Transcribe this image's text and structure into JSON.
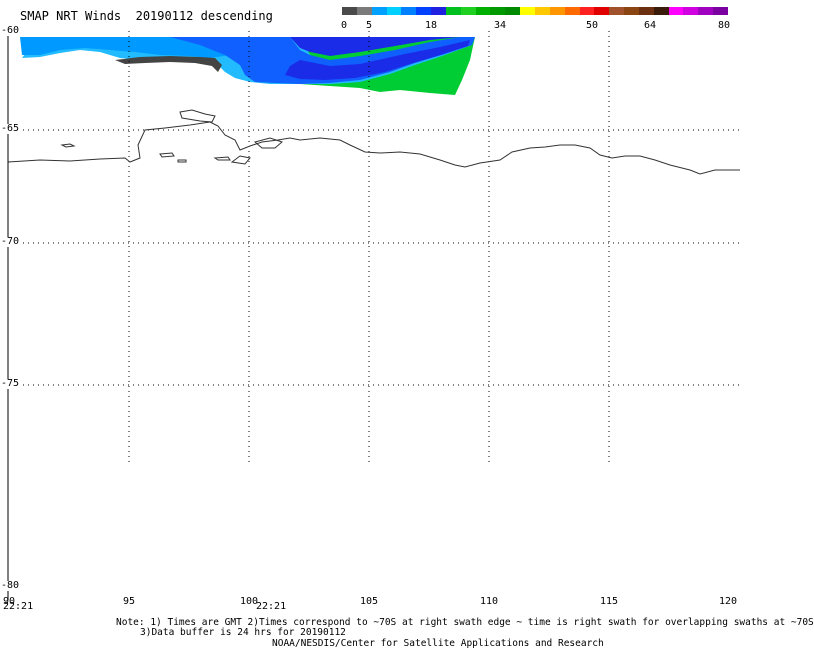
{
  "header": {
    "title": "SMAP NRT Winds  20190112 descending"
  },
  "colorbar": {
    "segments": [
      {
        "color": "#4a4a4a"
      },
      {
        "color": "#7a7a7a"
      },
      {
        "color": "#00a0ff"
      },
      {
        "color": "#00d0ff"
      },
      {
        "color": "#0080ff"
      },
      {
        "color": "#0040ff"
      },
      {
        "color": "#2020e0"
      },
      {
        "color": "#00c020"
      },
      {
        "color": "#20d020"
      },
      {
        "color": "#00b000"
      },
      {
        "color": "#009900"
      },
      {
        "color": "#008a00"
      },
      {
        "color": "#ffff00"
      },
      {
        "color": "#ffc800"
      },
      {
        "color": "#ff9600"
      },
      {
        "color": "#ff6a00"
      },
      {
        "color": "#ff2020"
      },
      {
        "color": "#e00000"
      },
      {
        "color": "#a0522d"
      },
      {
        "color": "#8b4513"
      },
      {
        "color": "#6b3010"
      },
      {
        "color": "#3a1a08"
      },
      {
        "color": "#ff00ff"
      },
      {
        "color": "#d000e0"
      },
      {
        "color": "#a000c0"
      },
      {
        "color": "#7a00a0"
      }
    ],
    "labels": [
      "0",
      "5",
      "18",
      "34",
      "50",
      "64",
      "80"
    ]
  },
  "axes": {
    "lat_labels": [
      "-60",
      "-65",
      "-70",
      "-75",
      "-80"
    ],
    "lon_labels": [
      "90",
      "95",
      "100",
      "105",
      "110",
      "115",
      "120"
    ],
    "time_labels": [
      "22:21",
      "22:21"
    ]
  },
  "notes": {
    "line1": "Note: 1) Times are GMT 2)Times correspond to ~70S at right swath edge ~ time is right swath for overlapping swaths at ~70S",
    "line2": "3)Data buffer is 24 hrs for 20190112",
    "line3": "NOAA/NESDIS/Center for Satellite Applications and Research"
  }
}
